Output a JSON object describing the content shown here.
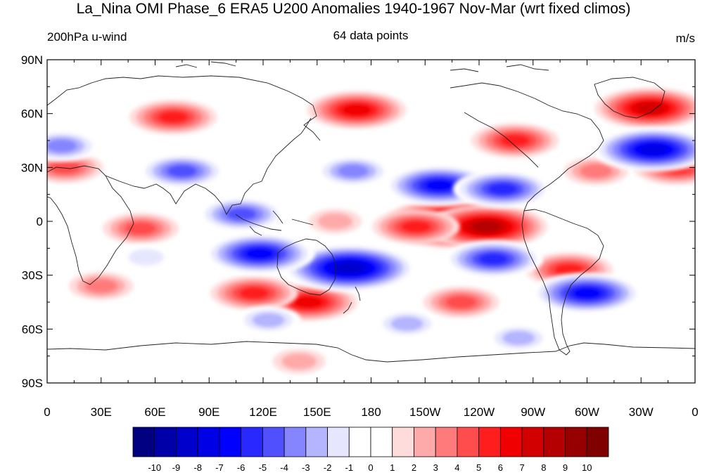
{
  "title": "La_Nina OMI Phase_6 ERA5 U200 Anomalies 1940-1967 Nov-Mar (wrt fixed climos)",
  "subtitle_left": "200hPa u-wind",
  "subtitle_center": "64 data points",
  "subtitle_right": "m/s",
  "lat_labels": [
    "90N",
    "60N",
    "30N",
    "0",
    "30S",
    "60S",
    "90S"
  ],
  "lon_labels": [
    "0",
    "30E",
    "60E",
    "90E",
    "120E",
    "150E",
    "180",
    "150W",
    "120W",
    "90W",
    "60W",
    "30W",
    "0"
  ],
  "colorbar": {
    "labels": [
      "-10",
      "-9",
      "-8",
      "-7",
      "-6",
      "-5",
      "-4",
      "-3",
      "-2",
      "-1",
      "0",
      "1",
      "2",
      "3",
      "4",
      "5",
      "6",
      "7",
      "8",
      "9",
      "10"
    ],
    "colors": [
      "#000080",
      "#0000a8",
      "#0000cc",
      "#0000e6",
      "#0000ff",
      "#2828ff",
      "#5050ff",
      "#8585ff",
      "#b4b4ff",
      "#e6e6ff",
      "#ffffff",
      "#ffffff",
      "#ffdcdc",
      "#ffaaaa",
      "#ff7a7a",
      "#ff4c4c",
      "#ff1e1e",
      "#f00000",
      "#d20000",
      "#b40000",
      "#960000",
      "#800000"
    ]
  },
  "chart_data": {
    "type": "heatmap",
    "variable": "200hPa u-wind",
    "units": "m/s",
    "lat_range": [
      -90,
      90
    ],
    "lon_range": [
      0,
      360
    ],
    "levels": [
      -10,
      -9,
      -8,
      -7,
      -6,
      -5,
      -4,
      -3,
      -2,
      -1,
      0,
      1,
      2,
      3,
      4,
      5,
      6,
      7,
      8,
      9,
      10
    ],
    "anomaly_features": [
      {
        "lon": 227,
        "lat": -1,
        "value": 10
      },
      {
        "lon": 244,
        "lat": -3,
        "value": 8
      },
      {
        "lon": 205,
        "lat": -3,
        "value": 5
      },
      {
        "lon": 160,
        "lat": 0,
        "value": 2
      },
      {
        "lon": 52,
        "lat": -4,
        "value": 4
      },
      {
        "lon": 10,
        "lat": 30,
        "value": 4
      },
      {
        "lon": 70,
        "lat": 58,
        "value": 5
      },
      {
        "lon": 172,
        "lat": 62,
        "value": 6
      },
      {
        "lon": 260,
        "lat": 45,
        "value": 5
      },
      {
        "lon": 335,
        "lat": 63,
        "value": 7
      },
      {
        "lon": 350,
        "lat": 30,
        "value": 5
      },
      {
        "lon": 305,
        "lat": 28,
        "value": 3
      },
      {
        "lon": 145,
        "lat": -45,
        "value": 6
      },
      {
        "lon": 115,
        "lat": -40,
        "value": 5
      },
      {
        "lon": 30,
        "lat": -36,
        "value": 3
      },
      {
        "lon": 230,
        "lat": -45,
        "value": 4
      },
      {
        "lon": 290,
        "lat": -27,
        "value": 5
      },
      {
        "lon": 140,
        "lat": -78,
        "value": 2
      },
      {
        "lon": 168,
        "lat": -26,
        "value": -9
      },
      {
        "lon": 118,
        "lat": -18,
        "value": -7
      },
      {
        "lon": 108,
        "lat": 4,
        "value": -5
      },
      {
        "lon": 218,
        "lat": 20,
        "value": -7
      },
      {
        "lon": 253,
        "lat": 18,
        "value": -6
      },
      {
        "lon": 248,
        "lat": -21,
        "value": -6
      },
      {
        "lon": 300,
        "lat": -40,
        "value": -7
      },
      {
        "lon": 337,
        "lat": 40,
        "value": -8
      },
      {
        "lon": 75,
        "lat": 28,
        "value": -5
      },
      {
        "lon": 170,
        "lat": 28,
        "value": -4
      },
      {
        "lon": 8,
        "lat": 42,
        "value": -4
      },
      {
        "lon": 123,
        "lat": -55,
        "value": -3
      },
      {
        "lon": 200,
        "lat": -57,
        "value": -3
      },
      {
        "lon": 262,
        "lat": -65,
        "value": -3
      },
      {
        "lon": 55,
        "lat": -20,
        "value": -2
      }
    ]
  }
}
